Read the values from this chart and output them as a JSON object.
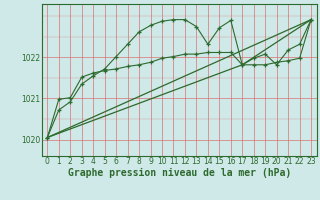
{
  "bg_color": "#cfe8e8",
  "line_color": "#2d6a2d",
  "xlabel": "Graphe pression niveau de la mer (hPa)",
  "xlabel_fontsize": 7.0,
  "tick_fontsize": 5.5,
  "ylabel_ticks": [
    1020,
    1021,
    1022
  ],
  "xlim": [
    -0.5,
    23.5
  ],
  "ylim": [
    1019.6,
    1023.3
  ],
  "series1_x": [
    0,
    1,
    2,
    3,
    4,
    5,
    6,
    7,
    8,
    9,
    10,
    11,
    12,
    13,
    14,
    15,
    16,
    17,
    18,
    19,
    20,
    21,
    22,
    23
  ],
  "series1_y": [
    1020.05,
    1020.72,
    1020.92,
    1021.35,
    1021.55,
    1021.72,
    1022.02,
    1022.32,
    1022.62,
    1022.78,
    1022.88,
    1022.92,
    1022.92,
    1022.75,
    1022.32,
    1022.72,
    1022.9,
    1021.82,
    1021.98,
    1022.08,
    1021.82,
    1022.18,
    1022.32,
    1022.92
  ],
  "series2_x": [
    0,
    1,
    2,
    3,
    4,
    5,
    6,
    7,
    8,
    9,
    10,
    11,
    12,
    13,
    14,
    15,
    16,
    17,
    18,
    19,
    20,
    21,
    22,
    23
  ],
  "series2_y": [
    1020.05,
    1020.98,
    1021.02,
    1021.52,
    1021.62,
    1021.68,
    1021.72,
    1021.78,
    1021.82,
    1021.88,
    1021.98,
    1022.02,
    1022.08,
    1022.08,
    1022.12,
    1022.12,
    1022.12,
    1021.82,
    1021.82,
    1021.82,
    1021.88,
    1021.92,
    1021.98,
    1022.92
  ],
  "series3_x": [
    0,
    23
  ],
  "series3_y": [
    1020.05,
    1022.92
  ],
  "series4_x": [
    0,
    17,
    23
  ],
  "series4_y": [
    1020.05,
    1021.82,
    1022.92
  ]
}
